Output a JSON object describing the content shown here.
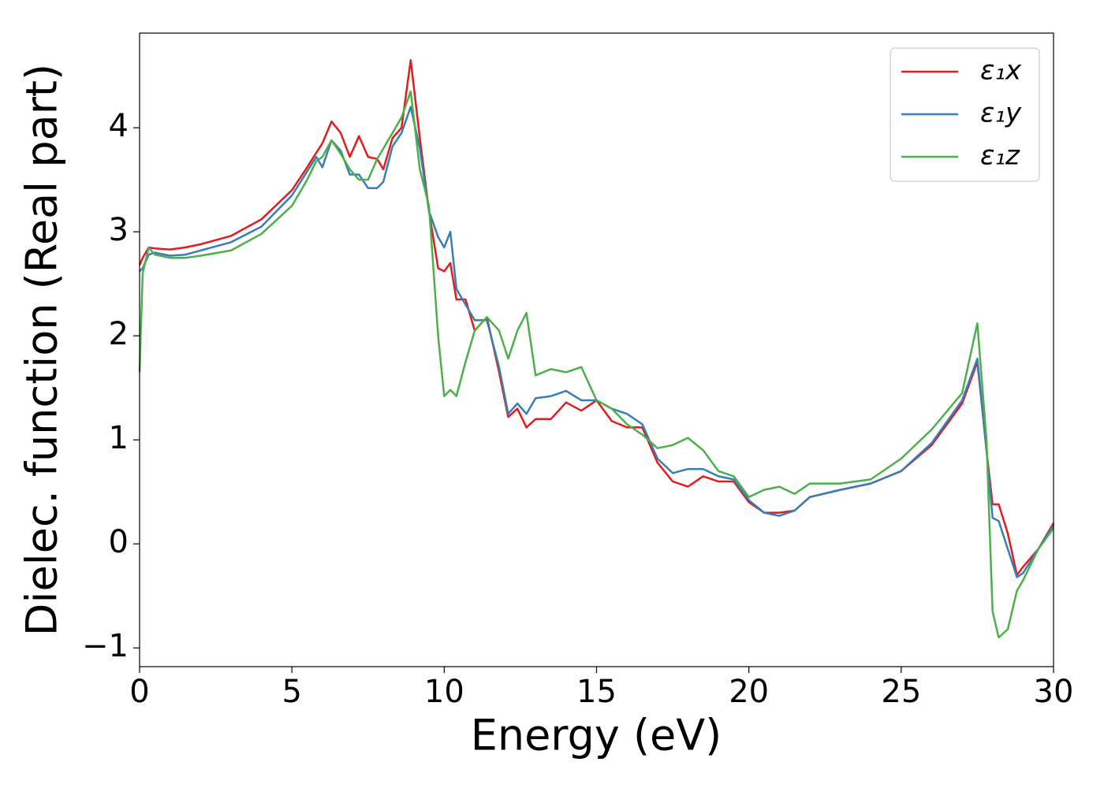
{
  "chart_data": {
    "type": "line",
    "xlabel": "Energy (eV)",
    "ylabel": "Dielec. function (Real part)",
    "x": [
      0,
      0.1,
      0.3,
      0.5,
      1,
      1.5,
      2,
      3,
      4,
      5,
      5.5,
      5.8,
      6.0,
      6.3,
      6.6,
      6.9,
      7.2,
      7.5,
      7.8,
      8.0,
      8.3,
      8.6,
      8.9,
      9.2,
      9.5,
      9.8,
      10.0,
      10.2,
      10.4,
      10.7,
      11.0,
      11.4,
      11.8,
      12.1,
      12.4,
      12.7,
      13.0,
      13.5,
      14.0,
      14.5,
      15.0,
      15.5,
      16.0,
      16.5,
      17.0,
      17.5,
      18.0,
      18.5,
      19.0,
      19.5,
      20.0,
      20.5,
      21.0,
      21.5,
      22.0,
      23.0,
      24.0,
      25.0,
      26.0,
      27.0,
      27.5,
      27.8,
      28.0,
      28.2,
      28.5,
      28.8,
      29.0,
      29.5,
      30
    ],
    "series": [
      {
        "name": "ε₁x",
        "color": "#e41a1c",
        "values": [
          2.68,
          2.75,
          2.85,
          2.84,
          2.83,
          2.85,
          2.88,
          2.96,
          3.12,
          3.4,
          3.62,
          3.76,
          3.85,
          4.06,
          3.95,
          3.72,
          3.92,
          3.72,
          3.7,
          3.6,
          3.9,
          4.0,
          4.65,
          3.9,
          3.2,
          2.65,
          2.62,
          2.7,
          2.35,
          2.35,
          2.05,
          2.18,
          1.65,
          1.22,
          1.3,
          1.12,
          1.2,
          1.2,
          1.36,
          1.28,
          1.38,
          1.18,
          1.12,
          1.12,
          0.78,
          0.6,
          0.55,
          0.65,
          0.6,
          0.6,
          0.4,
          0.3,
          0.3,
          0.32,
          0.45,
          0.52,
          0.58,
          0.7,
          0.95,
          1.35,
          1.75,
          0.9,
          0.38,
          0.38,
          0.1,
          -0.3,
          -0.22,
          -0.05,
          0.2
        ]
      },
      {
        "name": "ε₁y",
        "color": "#377eb8",
        "values": [
          2.62,
          2.65,
          2.78,
          2.8,
          2.77,
          2.78,
          2.82,
          2.9,
          3.05,
          3.35,
          3.58,
          3.72,
          3.62,
          3.88,
          3.78,
          3.55,
          3.55,
          3.42,
          3.42,
          3.48,
          3.82,
          3.95,
          4.2,
          3.8,
          3.2,
          2.95,
          2.85,
          3.0,
          2.45,
          2.3,
          2.15,
          2.15,
          1.7,
          1.25,
          1.35,
          1.25,
          1.4,
          1.42,
          1.47,
          1.38,
          1.38,
          1.3,
          1.25,
          1.15,
          0.82,
          0.68,
          0.72,
          0.72,
          0.65,
          0.62,
          0.42,
          0.3,
          0.27,
          0.32,
          0.45,
          0.52,
          0.58,
          0.7,
          0.97,
          1.38,
          1.78,
          0.9,
          0.25,
          0.22,
          -0.05,
          -0.32,
          -0.28,
          -0.05,
          0.18
        ]
      },
      {
        "name": "ε₁z",
        "color": "#4daf4a",
        "values": [
          1.65,
          2.6,
          2.85,
          2.78,
          2.75,
          2.75,
          2.77,
          2.82,
          2.98,
          3.25,
          3.5,
          3.68,
          3.72,
          3.88,
          3.75,
          3.6,
          3.5,
          3.5,
          3.7,
          3.8,
          3.95,
          4.1,
          4.35,
          3.6,
          3.25,
          2.0,
          1.42,
          1.48,
          1.42,
          1.75,
          2.05,
          2.18,
          2.05,
          1.78,
          2.05,
          2.22,
          1.62,
          1.68,
          1.65,
          1.7,
          1.38,
          1.3,
          1.15,
          1.05,
          0.92,
          0.95,
          1.02,
          0.9,
          0.7,
          0.65,
          0.45,
          0.52,
          0.55,
          0.48,
          0.58,
          0.58,
          0.62,
          0.82,
          1.1,
          1.45,
          2.12,
          1.0,
          -0.65,
          -0.9,
          -0.82,
          -0.45,
          -0.35,
          -0.05,
          0.15
        ]
      }
    ],
    "xlim": [
      0,
      30
    ],
    "xticks": [
      0,
      5,
      10,
      15,
      20,
      25,
      30
    ],
    "ylim": [
      -1.18,
      4.91
    ],
    "yticks": [
      {
        "value": -1,
        "label": "−1"
      },
      0,
      1,
      2,
      3,
      4
    ],
    "legend": "upper right"
  }
}
